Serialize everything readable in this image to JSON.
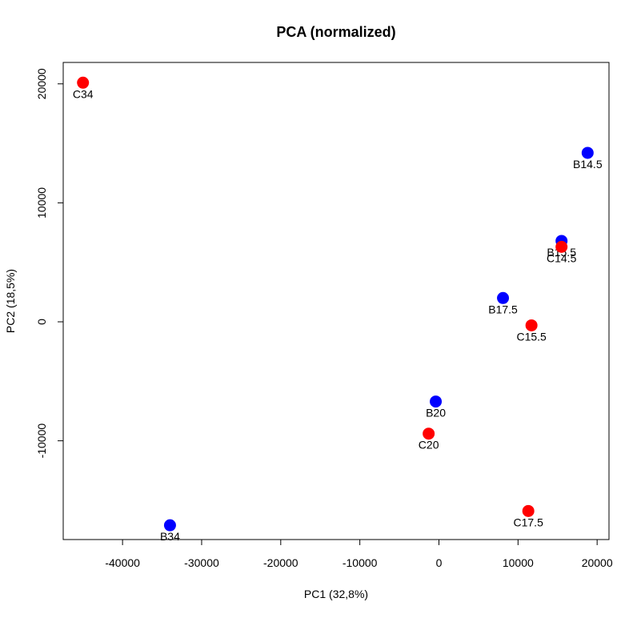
{
  "chart_data": {
    "type": "scatter",
    "title": "PCA (normalized)",
    "xlabel": "PC1 (32,8%)",
    "ylabel": "PC2 (18,5%)",
    "xlim": [
      -47500,
      21500
    ],
    "ylim": [
      -18300,
      21800
    ],
    "xticks": [
      -40000,
      -30000,
      -20000,
      -10000,
      0,
      10000,
      20000
    ],
    "yticks": [
      -10000,
      0,
      10000,
      20000
    ],
    "grid": false,
    "legend": "none",
    "colors": {
      "B": "#0000ff",
      "C": "#ff0000"
    },
    "points": [
      {
        "label": "C34",
        "x": -45000,
        "y": 20100,
        "group": "C"
      },
      {
        "label": "B14.5",
        "x": 18800,
        "y": 14200,
        "group": "B"
      },
      {
        "label": "B15.5",
        "x": 15500,
        "y": 6800,
        "group": "B"
      },
      {
        "label": "C14.5",
        "x": 15500,
        "y": 6300,
        "group": "C"
      },
      {
        "label": "B17.5",
        "x": 8100,
        "y": 2000,
        "group": "B"
      },
      {
        "label": "C15.5",
        "x": 11700,
        "y": -300,
        "group": "C"
      },
      {
        "label": "B20",
        "x": -400,
        "y": -6700,
        "group": "B"
      },
      {
        "label": "C20",
        "x": -1300,
        "y": -9400,
        "group": "C"
      },
      {
        "label": "C17.5",
        "x": 11300,
        "y": -15900,
        "group": "C"
      },
      {
        "label": "B34",
        "x": -34000,
        "y": -17100,
        "group": "B"
      }
    ]
  }
}
